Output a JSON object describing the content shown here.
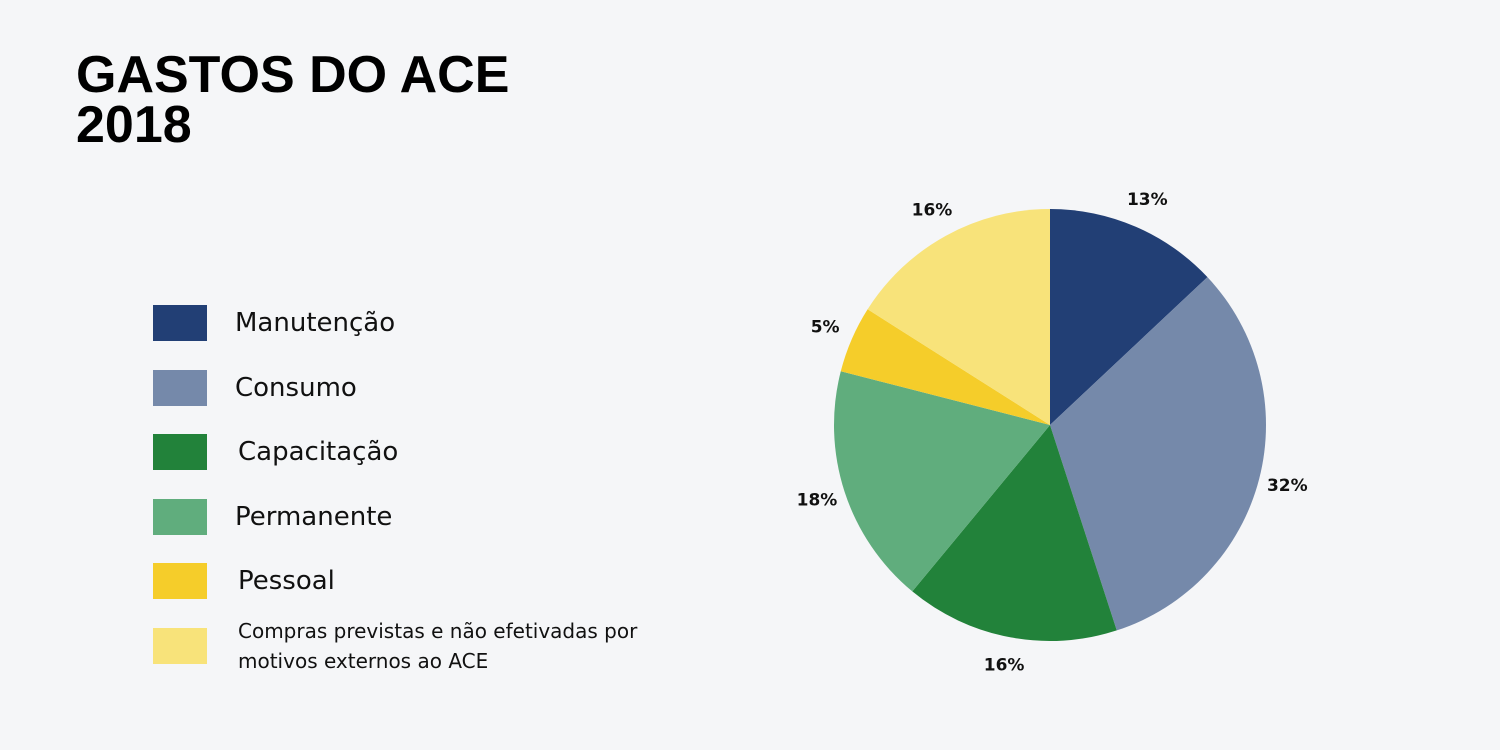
{
  "chart_data": {
    "type": "pie",
    "title": [
      "GASTOS DO ACE",
      "2018"
    ],
    "categories": [
      "Manutenção",
      "Consumo",
      "Capacitação",
      "Permanente",
      "Pessoal",
      "Compras previstas e não efetivadas por motivos externos ao ACE"
    ],
    "values": [
      13,
      32,
      16,
      18,
      5,
      16
    ],
    "value_labels": [
      "13%",
      "32%",
      "16%",
      "18%",
      "5%",
      "16%"
    ],
    "colors": [
      "#223f75",
      "#7589aa",
      "#22823a",
      "#60ad7d",
      "#f5cd2a",
      "#f8e37a"
    ]
  }
}
